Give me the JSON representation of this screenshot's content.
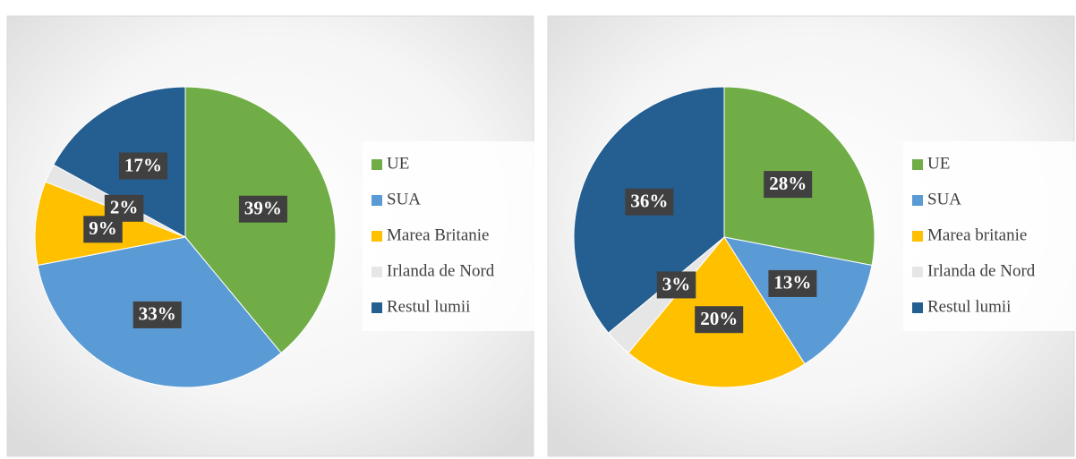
{
  "chart_data": [
    {
      "type": "pie",
      "categories": [
        "UE",
        "SUA",
        "Marea Britanie",
        "Irlanda de Nord",
        "Restul lumii"
      ],
      "values": [
        39,
        33,
        9,
        2,
        17
      ],
      "value_labels": [
        "39%",
        "33%",
        "9%",
        "2%",
        "17%"
      ],
      "colors": [
        "#70ad47",
        "#5b9bd5",
        "#ffc000",
        "#e7e6e6",
        "#255e91"
      ],
      "legend": "right"
    },
    {
      "type": "pie",
      "categories": [
        "UE",
        "SUA",
        "Marea britanie",
        "Irlanda de Nord",
        "Restul lumii"
      ],
      "values": [
        28,
        13,
        20,
        3,
        36
      ],
      "value_labels": [
        "28%",
        "13%",
        "20%",
        "3%",
        "36%"
      ],
      "colors": [
        "#70ad47",
        "#5b9bd5",
        "#ffc000",
        "#e7e6e6",
        "#255e91"
      ],
      "legend": "right"
    }
  ]
}
